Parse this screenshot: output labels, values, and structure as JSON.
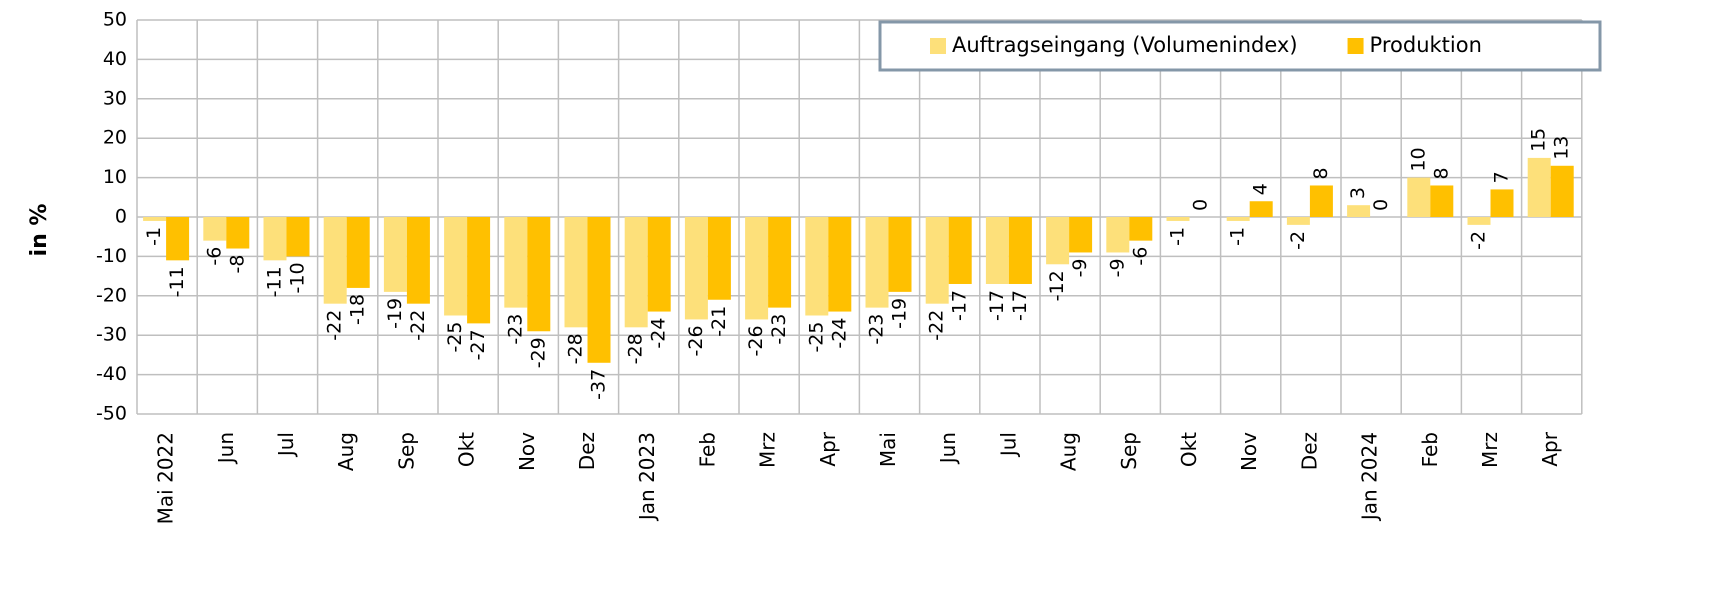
{
  "chart_data": {
    "type": "bar",
    "y_label": "in %",
    "categories": [
      "Mai 2022",
      "Jun",
      "Jul",
      "Aug",
      "Sep",
      "Okt",
      "Nov",
      "Dez",
      "Jan 2023",
      "Feb",
      "Mrz",
      "Apr",
      "Mai",
      "Jun",
      "Jul",
      "Aug",
      "Sep",
      "Okt",
      "Nov",
      "Dez",
      "Jan 2024",
      "Feb",
      "Mrz",
      "Apr"
    ],
    "series": [
      {
        "name": "Auftragseingang (Volumenindex)",
        "color": "#fde07a",
        "values": [
          -1,
          -6,
          -11,
          -22,
          -19,
          -25,
          -23,
          -28,
          -28,
          -26,
          -26,
          -25,
          -23,
          -22,
          -17,
          -12,
          -9,
          -1,
          -1,
          -2,
          3,
          10,
          -2,
          15
        ]
      },
      {
        "name": "Produktion",
        "color": "#ffc000",
        "values": [
          -11,
          -8,
          -10,
          -18,
          -22,
          -27,
          -29,
          -37,
          -24,
          -21,
          -23,
          -24,
          -19,
          -17,
          -17,
          -9,
          -6,
          0,
          4,
          8,
          0,
          8,
          7,
          13
        ]
      }
    ],
    "ylim": [
      -50,
      50
    ],
    "yticks": [
      -50,
      -40,
      -30,
      -20,
      -10,
      0,
      10,
      20,
      30,
      40,
      50
    ],
    "grid": true,
    "legend": "top-right"
  }
}
